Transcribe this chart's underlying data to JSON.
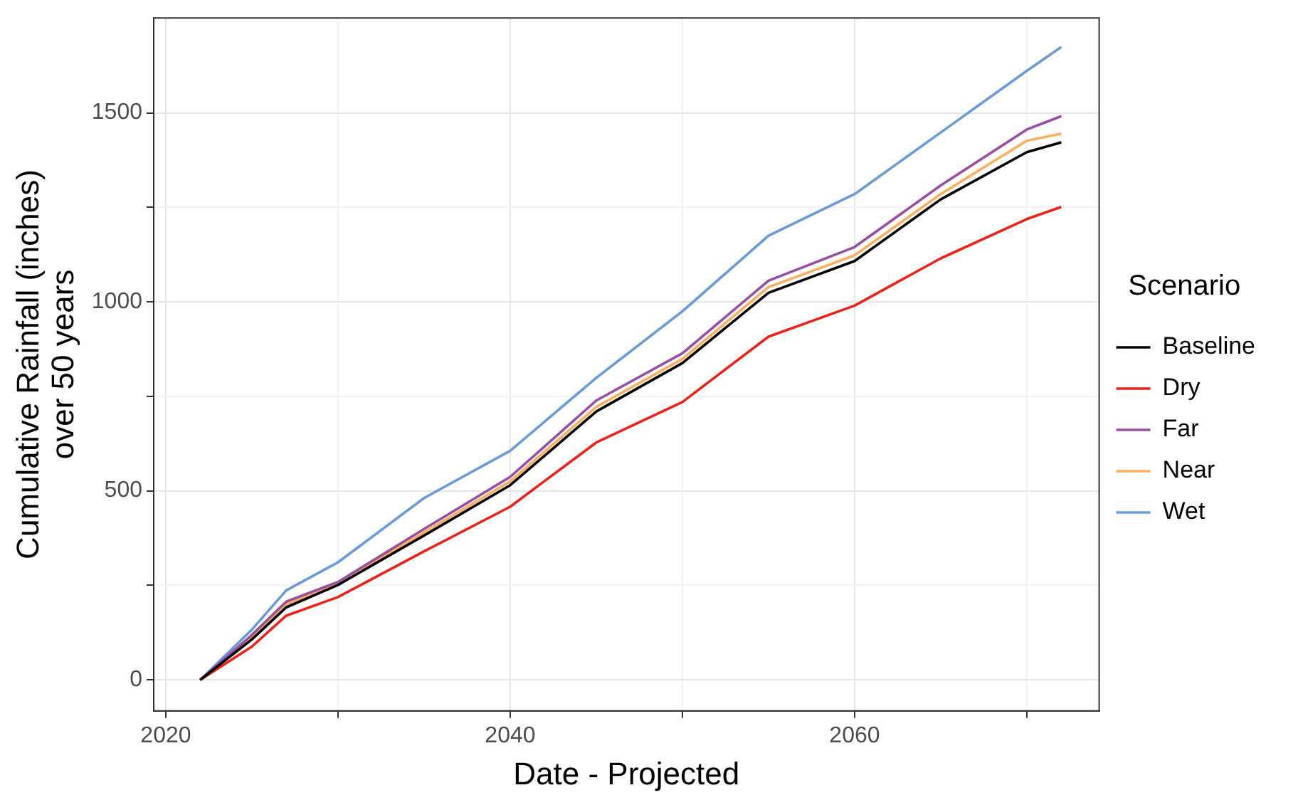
{
  "chart_data": {
    "type": "line",
    "xlabel": "Date - Projected",
    "ylabel": "Cumulative Rainfall (inches)\nover 50 years",
    "legend_title": "Scenario",
    "legend": "right",
    "grid": true,
    "marker": "none",
    "line_style": "solid",
    "x": [
      2022,
      2025,
      2027,
      2030,
      2035,
      2040,
      2045,
      2050,
      2055,
      2060,
      2065,
      2070,
      2072
    ],
    "xlim": [
      2019.3,
      2074.2
    ],
    "xticks": [
      2020,
      {
        "value": 2030,
        "label": null
      },
      2040,
      {
        "value": 2050,
        "label": null
      },
      2060,
      {
        "value": 2070,
        "label": null
      }
    ],
    "ylim": [
      -82,
      1751
    ],
    "yticks": [
      0,
      {
        "value": 250,
        "label": null
      },
      500,
      {
        "value": 750,
        "label": null
      },
      1000,
      {
        "value": 1250,
        "label": null
      },
      1500
    ],
    "series": [
      {
        "name": "Baseline",
        "color": "#000000",
        "values": [
          0,
          107,
          192,
          251,
          382,
          515,
          710,
          838,
          1024,
          1108,
          1271,
          1396,
          1422
        ]
      },
      {
        "name": "Dry",
        "color": "#e8251c",
        "values": [
          0,
          88,
          170,
          219,
          340,
          458,
          628,
          735,
          908,
          990,
          1115,
          1219,
          1251
        ]
      },
      {
        "name": "Far",
        "color": "#984ea3",
        "values": [
          0,
          119,
          207,
          259,
          399,
          537,
          739,
          864,
          1056,
          1145,
          1308,
          1456,
          1491
        ]
      },
      {
        "name": "Near",
        "color": "#fdae61",
        "values": [
          0,
          113,
          200,
          255,
          390,
          525,
          722,
          849,
          1039,
          1123,
          1285,
          1426,
          1445
        ]
      },
      {
        "name": "Wet",
        "color": "#6a9ad8",
        "values": [
          0,
          133,
          237,
          311,
          481,
          606,
          799,
          975,
          1175,
          1285,
          1448,
          1611,
          1674
        ]
      }
    ]
  }
}
